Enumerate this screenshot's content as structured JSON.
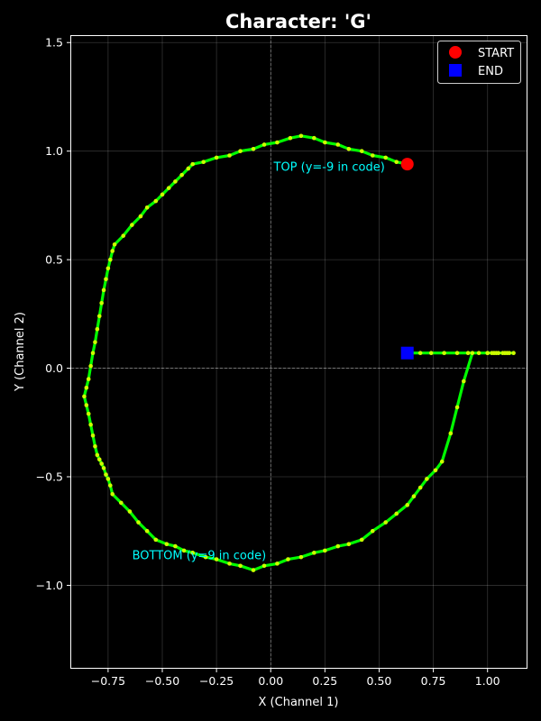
{
  "chart_data": {
    "type": "line",
    "title": "Character: 'G'",
    "xlabel": "X (Channel 1)",
    "ylabel": "Y (Channel 2)",
    "xlim": [
      -0.92,
      1.18
    ],
    "ylim": [
      -1.38,
      1.53
    ],
    "xticks": [
      -0.75,
      -0.5,
      -0.25,
      0.0,
      0.25,
      0.5,
      0.75,
      1.0
    ],
    "xtick_labels": [
      "−0.75",
      "−0.50",
      "−0.25",
      "0.00",
      "0.25",
      "0.50",
      "0.75",
      "1.00"
    ],
    "yticks": [
      -1.0,
      -0.5,
      0.0,
      0.5,
      1.0,
      1.5
    ],
    "ytick_labels": [
      "−1.0",
      "−0.5",
      "0.0",
      "0.5",
      "1.0",
      "1.5"
    ],
    "grid": true,
    "legend_position": "top-right",
    "colors": {
      "background": "#000000",
      "line": "#00ff00",
      "points": "#ccff00",
      "start": "#ff0000",
      "end": "#0000ff",
      "annotation": "#00ffff"
    },
    "series": [
      {
        "x": [
          0.63,
          0.58,
          0.53,
          0.47,
          0.42,
          0.36,
          0.31,
          0.25,
          0.2,
          0.14,
          0.09,
          0.03,
          -0.03,
          -0.08,
          -0.14,
          -0.19,
          -0.25,
          -0.31,
          -0.36,
          -0.38,
          -0.41,
          -0.44,
          -0.47,
          -0.5,
          -0.53,
          -0.57,
          -0.6,
          -0.64,
          -0.68,
          -0.72,
          -0.73,
          -0.74,
          -0.75,
          -0.76,
          -0.77,
          -0.78,
          -0.79,
          -0.8,
          -0.81,
          -0.82,
          -0.83,
          -0.84,
          -0.85,
          -0.86,
          -0.85,
          -0.84,
          -0.83,
          -0.82,
          -0.81,
          -0.8,
          -0.79,
          -0.78,
          -0.77,
          -0.76,
          -0.75,
          -0.74,
          -0.73,
          -0.69,
          -0.65,
          -0.61,
          -0.57,
          -0.53,
          -0.48,
          -0.44,
          -0.4,
          -0.36,
          -0.3,
          -0.25,
          -0.19,
          -0.14,
          -0.08,
          -0.03,
          0.03,
          0.08,
          0.14,
          0.2,
          0.25,
          0.31,
          0.36,
          0.42,
          0.47,
          0.53,
          0.58,
          0.63,
          0.66,
          0.69,
          0.72,
          0.76,
          0.79,
          0.83,
          0.86,
          0.89,
          0.93,
          0.96,
          1.0,
          1.02,
          1.04,
          1.07,
          1.09,
          1.12,
          1.1,
          1.08,
          1.05,
          1.03,
          1.0,
          0.91,
          0.86,
          0.8,
          0.74,
          0.69,
          0.63
        ],
        "y": [
          0.94,
          0.95,
          0.97,
          0.98,
          1.0,
          1.01,
          1.03,
          1.04,
          1.06,
          1.07,
          1.06,
          1.04,
          1.03,
          1.01,
          1.0,
          0.98,
          0.97,
          0.95,
          0.94,
          0.92,
          0.89,
          0.86,
          0.83,
          0.8,
          0.77,
          0.74,
          0.7,
          0.66,
          0.61,
          0.57,
          0.54,
          0.5,
          0.46,
          0.41,
          0.36,
          0.3,
          0.24,
          0.18,
          0.12,
          0.07,
          0.01,
          -0.05,
          -0.09,
          -0.13,
          -0.17,
          -0.21,
          -0.26,
          -0.31,
          -0.36,
          -0.4,
          -0.42,
          -0.44,
          -0.46,
          -0.49,
          -0.51,
          -0.54,
          -0.58,
          -0.62,
          -0.66,
          -0.71,
          -0.75,
          -0.79,
          -0.81,
          -0.82,
          -0.84,
          -0.85,
          -0.87,
          -0.88,
          -0.9,
          -0.91,
          -0.93,
          -0.91,
          -0.9,
          -0.88,
          -0.87,
          -0.85,
          -0.84,
          -0.82,
          -0.81,
          -0.79,
          -0.75,
          -0.71,
          -0.67,
          -0.63,
          -0.59,
          -0.55,
          -0.51,
          -0.47,
          -0.43,
          -0.3,
          -0.18,
          -0.06,
          0.07,
          0.07,
          0.07,
          0.07,
          0.07,
          0.07,
          0.07,
          0.07,
          0.07,
          0.07,
          0.07,
          0.07,
          0.07,
          0.07,
          0.07,
          0.07,
          0.07,
          0.07,
          0.07
        ]
      }
    ],
    "start": {
      "x": 0.63,
      "y": 0.94,
      "label": "START"
    },
    "end": {
      "x": 0.63,
      "y": 0.07,
      "label": "END"
    },
    "annotations": [
      {
        "text": "TOP (y=-9 in code)",
        "x": 0.27,
        "y": 0.91
      },
      {
        "text": "BOTTOM (y=9 in code)",
        "x": -0.33,
        "y": -0.88
      }
    ]
  }
}
